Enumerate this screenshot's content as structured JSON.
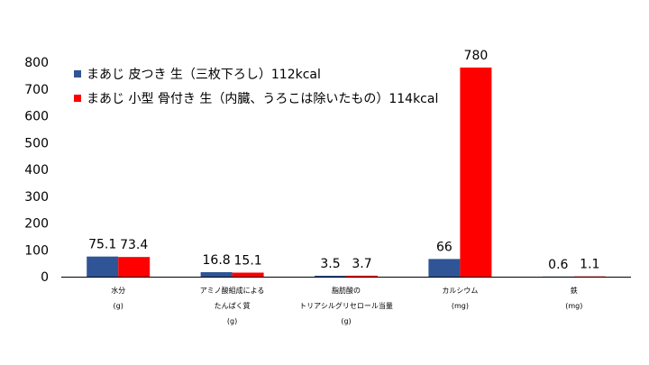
{
  "chart_data": {
    "type": "bar",
    "title": "",
    "xlabel": "",
    "ylabel": "",
    "ylim": [
      0,
      800
    ],
    "yticks": [
      0,
      100,
      200,
      300,
      400,
      500,
      600,
      700,
      800
    ],
    "grid": false,
    "legend_position": "top-left",
    "categories": [
      [
        "水分",
        "(g)"
      ],
      [
        "アミノ酸組成による",
        "たんぱく質",
        "(g)"
      ],
      [
        "脂肪酸の",
        "トリアシルグリセロール当量",
        "(g)"
      ],
      [
        "カルシウム",
        "(mg)"
      ],
      [
        "鉄",
        "(mg)"
      ]
    ],
    "series": [
      {
        "name": "まあじ 皮つき 生（三枚下ろし）112kcal",
        "color": "#2F5597",
        "values": [
          75.1,
          16.8,
          3.5,
          66,
          0.6
        ],
        "labels": [
          "75.1",
          "16.8",
          "3.5",
          "66",
          "0.6"
        ]
      },
      {
        "name": "まあじ 小型 骨付き 生（内臓、うろこは除いたもの）114kcal",
        "color": "#FF0000",
        "values": [
          73.4,
          15.1,
          3.7,
          780,
          1.1
        ],
        "labels": [
          "73.4",
          "15.1",
          "3.7",
          "780",
          "1.1"
        ]
      }
    ]
  }
}
